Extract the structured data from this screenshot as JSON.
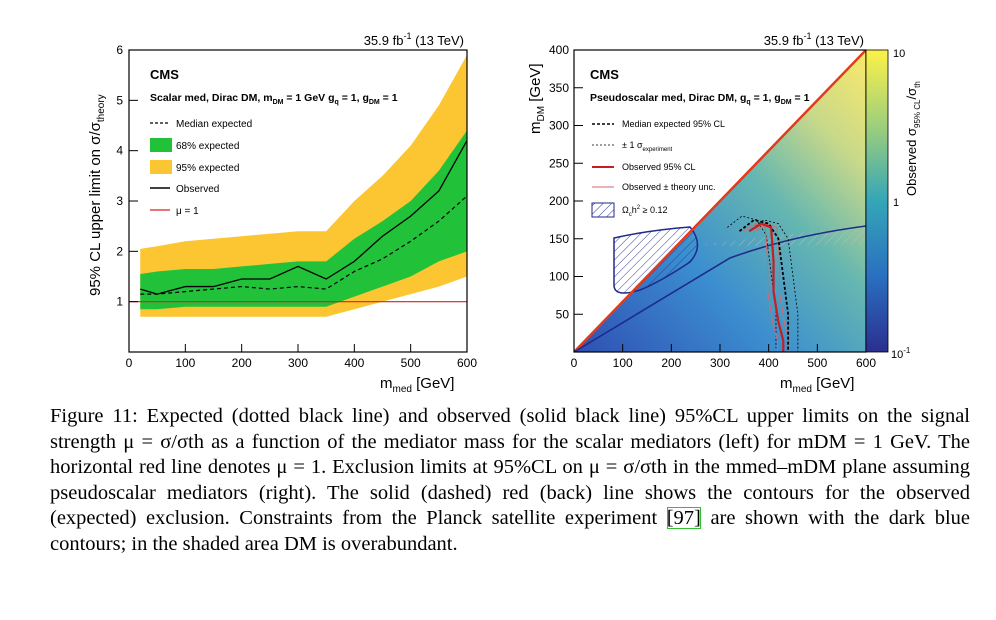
{
  "left_plot": {
    "lumi": "35.9 fb",
    "lumi_sup": "-1",
    "energy": " (13 TeV)",
    "cms": "CMS",
    "model": "Scalar med, Dirac DM, m",
    "model_parts": [
      "Scalar med, Dirac DM, m",
      "DM",
      " = 1 GeV g",
      "q",
      " = 1, g",
      "DM",
      " = 1"
    ],
    "ylabel": "95% CL upper limit on σ/σ",
    "ylabel_sub": "theory",
    "xlabel": "m",
    "xlabel_sub": "med",
    "xlabel_unit": " [GeV]",
    "legend": [
      "Median expected",
      "68% expected",
      "95% expected",
      "Observed",
      "μ = 1"
    ],
    "x_ticks": [
      "0",
      "100",
      "200",
      "300",
      "400",
      "500",
      "600"
    ],
    "y_ticks": [
      "1",
      "2",
      "3",
      "4",
      "5",
      "6"
    ]
  },
  "right_plot": {
    "lumi": "35.9 fb",
    "lumi_sup": "-1",
    "energy": " (13 TeV)",
    "cms": "CMS",
    "model_parts": [
      "Pseudoscalar med, Dirac DM, g",
      "q",
      " = 1, g",
      "DM",
      " = 1"
    ],
    "ylabel": "m",
    "ylabel_sub": "DM",
    "ylabel_unit": " [GeV]",
    "xlabel": "m",
    "xlabel_sub": "med",
    "xlabel_unit": " [GeV]",
    "zlabel": "Observed σ",
    "zlabel_sub": "95% CL",
    "zlabel_tail": "/σ",
    "zlabel_sub2": "th",
    "legend": [
      "Median expected 95% CL",
      "± 1 σ",
      "Observed 95% CL",
      "Observed ± theory unc.",
      "Ω",
      "c",
      "h",
      "2",
      " ≥ 0.12"
    ],
    "legend_sub_exp": "experiment",
    "x_ticks": [
      "0",
      "100",
      "200",
      "300",
      "400",
      "500",
      "600"
    ],
    "y_ticks": [
      "50",
      "100",
      "150",
      "200",
      "250",
      "300",
      "350",
      "400"
    ],
    "z_ticks": [
      "10",
      "1",
      "10"
    ],
    "z_tick_exp": "-1"
  },
  "chart_data": [
    {
      "type": "line",
      "title": "",
      "xlabel": "m_med [GeV]",
      "ylabel": "95% CL upper limit on σ/σ_theory",
      "xlim": [
        0,
        600
      ],
      "ylim": [
        0,
        6
      ],
      "legend_position": "top-left",
      "x": [
        20,
        50,
        100,
        150,
        200,
        250,
        300,
        350,
        400,
        450,
        500,
        550,
        600
      ],
      "series": [
        {
          "name": "Median expected",
          "values": [
            1.15,
            1.15,
            1.2,
            1.25,
            1.3,
            1.25,
            1.3,
            1.25,
            1.6,
            1.85,
            2.2,
            2.6,
            3.1
          ]
        },
        {
          "name": "Observed",
          "values": [
            1.25,
            1.15,
            1.3,
            1.3,
            1.45,
            1.45,
            1.7,
            1.45,
            1.8,
            2.3,
            2.7,
            3.2,
            4.2
          ]
        },
        {
          "name": "68% expected (low)",
          "values": [
            0.85,
            0.85,
            0.9,
            0.9,
            0.9,
            0.9,
            0.9,
            0.9,
            1.1,
            1.3,
            1.5,
            1.8,
            2.0
          ]
        },
        {
          "name": "68% expected (high)",
          "values": [
            1.55,
            1.6,
            1.65,
            1.65,
            1.7,
            1.75,
            1.8,
            1.8,
            2.25,
            2.6,
            3.0,
            3.6,
            4.4
          ]
        },
        {
          "name": "95% expected (low)",
          "values": [
            0.7,
            0.7,
            0.7,
            0.7,
            0.7,
            0.7,
            0.7,
            0.7,
            0.85,
            1.0,
            1.15,
            1.3,
            1.5
          ]
        },
        {
          "name": "95% expected (high)",
          "values": [
            2.05,
            2.1,
            2.2,
            2.25,
            2.3,
            2.35,
            2.4,
            2.4,
            3.0,
            3.5,
            4.1,
            4.9,
            5.9
          ]
        },
        {
          "name": "μ = 1",
          "values": [
            1,
            1,
            1,
            1,
            1,
            1,
            1,
            1,
            1,
            1,
            1,
            1,
            1
          ]
        }
      ]
    },
    {
      "type": "heatmap",
      "title": "",
      "xlabel": "m_med [GeV]",
      "ylabel": "m_DM [GeV]",
      "zlabel": "Observed σ_95% CL/σ_th",
      "xlim": [
        0,
        600
      ],
      "ylim": [
        0,
        400
      ],
      "zlim": [
        0.1,
        10
      ],
      "z_scale": "log",
      "legend_position": "top-left",
      "series": [
        {
          "name": "Median expected 95% CL",
          "x": [
            340,
            370,
            400,
            420,
            430,
            440,
            440,
            440
          ],
          "y": [
            160,
            175,
            170,
            150,
            100,
            50,
            20,
            0
          ]
        },
        {
          "name": "Observed 95% CL",
          "x": [
            360,
            385,
            405,
            410,
            410,
            420,
            430,
            430
          ],
          "y": [
            160,
            170,
            165,
            120,
            80,
            40,
            15,
            0
          ]
        },
        {
          "name": "Ω_c h² ≥ 0.12",
          "x": [
            0,
            100,
            200,
            300,
            400,
            500,
            600
          ],
          "y": [
            0,
            40,
            80,
            120,
            145,
            160,
            165
          ]
        }
      ]
    }
  ],
  "caption": {
    "label": "Figure 11:",
    "text": "Expected (dotted black line) and observed (solid black line) 95%CL upper limits on the signal strength μ = σ/σth as a function of the mediator mass for the scalar mediators (left) for mDM = 1 GeV. The horizontal red line denotes μ = 1. Exclusion limits at 95%CL on μ = σ/σth in the mmed–mDM plane assuming pseudoscalar mediators (right). The solid (dashed) red (back) line shows the contours for the observed (expected) exclusion. Constraints from the Planck satellite experiment",
    "ref": "[97]",
    "tail": "are shown with the dark blue contours; in the shaded area DM is overabundant."
  },
  "colors": {
    "band68": "#22c13a",
    "band95": "#fcc632",
    "observed": "#000000",
    "mu1": "#d92020",
    "planck": "#1f2a8a",
    "obs_contour": "#c81e1e"
  }
}
